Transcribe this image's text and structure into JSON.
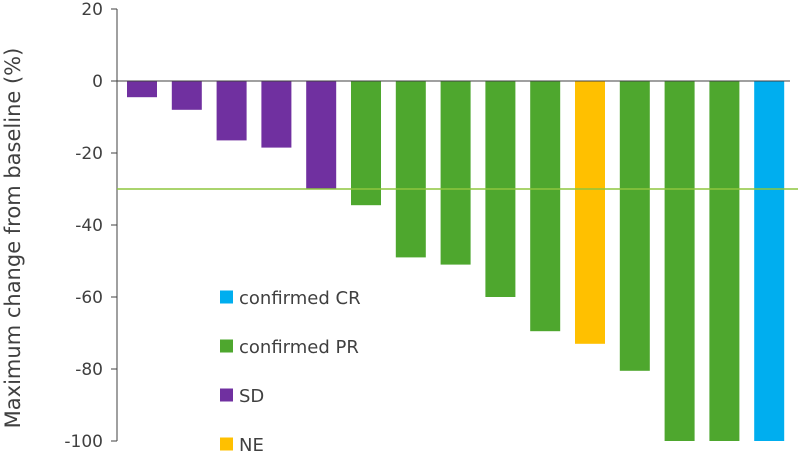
{
  "chart_data": {
    "type": "bar",
    "title": "",
    "xlabel": "",
    "ylabel": "Maximum change from baseline (%)",
    "ylim": [
      -100,
      20
    ],
    "yticks": [
      20,
      0,
      -20,
      -40,
      -60,
      -80,
      -100
    ],
    "grid": false,
    "threshold_line": {
      "value": -30,
      "color": "#8DC63F"
    },
    "categories": [
      "confirmed CR",
      "confirmed PR",
      "SD",
      "NE"
    ],
    "colors": {
      "confirmed CR": "#00AEEF",
      "confirmed PR": "#4EA72E",
      "SD": "#7030A0",
      "NE": "#FFC000"
    },
    "bars": [
      {
        "value": -4.5,
        "category": "SD"
      },
      {
        "value": -8,
        "category": "SD"
      },
      {
        "value": -16.5,
        "category": "SD"
      },
      {
        "value": -18.5,
        "category": "SD"
      },
      {
        "value": -30,
        "category": "SD"
      },
      {
        "value": -34.5,
        "category": "confirmed PR"
      },
      {
        "value": -49,
        "category": "confirmed PR"
      },
      {
        "value": -51,
        "category": "confirmed PR"
      },
      {
        "value": -60,
        "category": "confirmed PR"
      },
      {
        "value": -69.5,
        "category": "confirmed PR"
      },
      {
        "value": -73,
        "category": "NE"
      },
      {
        "value": -80.5,
        "category": "confirmed PR"
      },
      {
        "value": -100,
        "category": "confirmed PR"
      },
      {
        "value": -100,
        "category": "confirmed PR"
      },
      {
        "value": -100,
        "category": "confirmed CR"
      }
    ],
    "legend": {
      "placement": "bottom-left",
      "entries": [
        "confirmed CR",
        "confirmed PR",
        "SD",
        "NE"
      ]
    }
  }
}
